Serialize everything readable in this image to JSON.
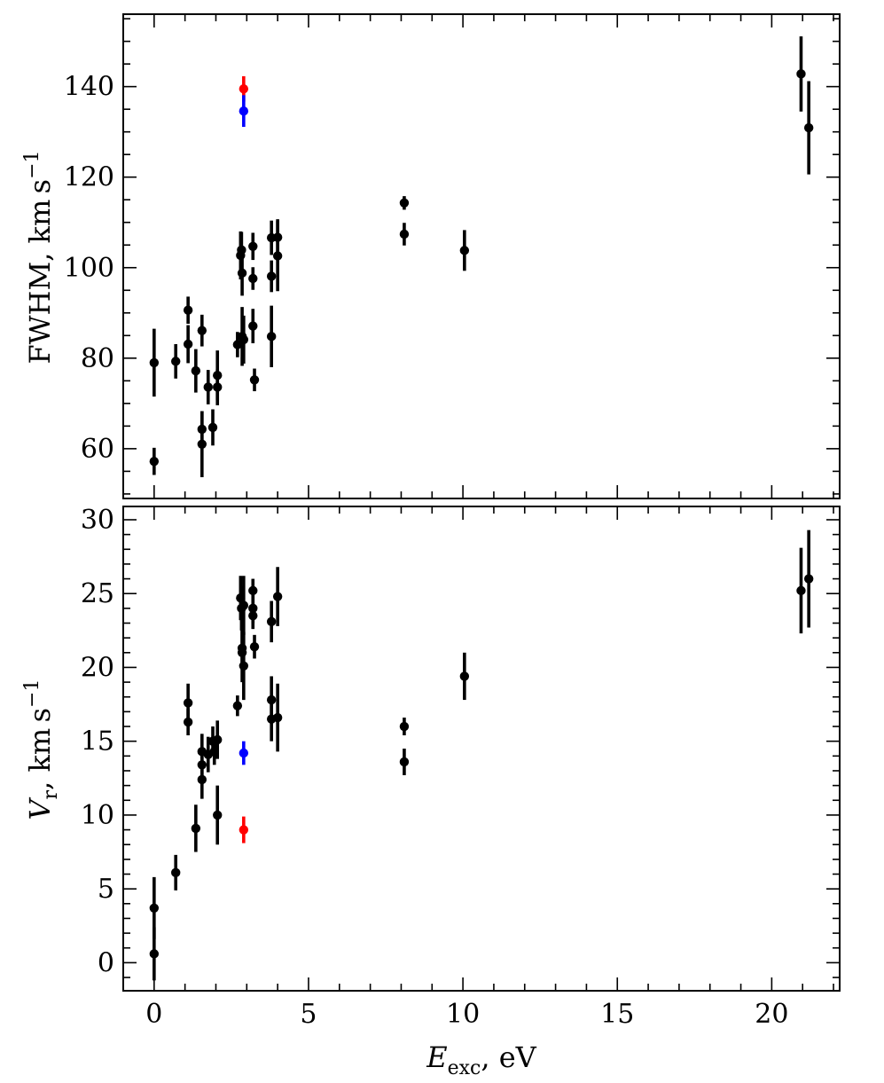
{
  "chart_data": [
    {
      "type": "scatter",
      "panel": "top",
      "xlabel": "",
      "ylabel": "FWHM, km s⁻¹",
      "ylabel_parts": {
        "main": "FWHM, km s",
        "sup": "−1"
      },
      "xlim": [
        -1,
        22.2
      ],
      "ylim": [
        49,
        156
      ],
      "yticks": [
        60,
        80,
        100,
        120,
        140
      ],
      "xticks": [
        0,
        5,
        10,
        15,
        20
      ],
      "grid": false,
      "legend": "none",
      "series": [
        {
          "color": "#000000",
          "points": [
            {
              "x": 0.0,
              "y": 79.0,
              "err": 7.5
            },
            {
              "x": 0.0,
              "y": 57.2,
              "err": 3.0
            },
            {
              "x": 0.7,
              "y": 79.3,
              "err": 3.8
            },
            {
              "x": 1.1,
              "y": 90.6,
              "err": 3.0
            },
            {
              "x": 1.1,
              "y": 83.1,
              "err": 4.2
            },
            {
              "x": 1.35,
              "y": 77.2,
              "err": 4.8
            },
            {
              "x": 1.55,
              "y": 86.1,
              "err": 3.5
            },
            {
              "x": 1.55,
              "y": 64.3,
              "err": 4.0
            },
            {
              "x": 1.55,
              "y": 61.0,
              "err": 7.3
            },
            {
              "x": 1.75,
              "y": 73.6,
              "err": 3.8
            },
            {
              "x": 1.9,
              "y": 64.7,
              "err": 4.0
            },
            {
              "x": 2.05,
              "y": 76.2,
              "err": 5.5
            },
            {
              "x": 2.05,
              "y": 73.6,
              "err": 4.0
            },
            {
              "x": 2.7,
              "y": 83.0,
              "err": 2.8
            },
            {
              "x": 2.8,
              "y": 102.7,
              "err": 5.3
            },
            {
              "x": 2.83,
              "y": 103.9,
              "err": 4.0
            },
            {
              "x": 2.85,
              "y": 98.8,
              "err": 5.0
            },
            {
              "x": 2.85,
              "y": 84.8,
              "err": 6.5
            },
            {
              "x": 2.9,
              "y": 84.1,
              "err": 5.3
            },
            {
              "x": 3.2,
              "y": 104.7,
              "err": 3.0
            },
            {
              "x": 3.2,
              "y": 97.6,
              "err": 2.5
            },
            {
              "x": 3.2,
              "y": 87.1,
              "err": 3.8
            },
            {
              "x": 3.25,
              "y": 75.2,
              "err": 2.5
            },
            {
              "x": 3.8,
              "y": 106.6,
              "err": 3.8
            },
            {
              "x": 3.8,
              "y": 98.1,
              "err": 3.5
            },
            {
              "x": 3.8,
              "y": 84.8,
              "err": 6.8
            },
            {
              "x": 4.0,
              "y": 106.7,
              "err": 4.0
            },
            {
              "x": 4.0,
              "y": 102.6,
              "err": 7.8
            },
            {
              "x": 8.1,
              "y": 114.3,
              "err": 1.5
            },
            {
              "x": 8.1,
              "y": 107.4,
              "err": 2.5
            },
            {
              "x": 10.05,
              "y": 103.8,
              "err": 4.5
            },
            {
              "x": 20.95,
              "y": 142.8,
              "err": 8.3
            },
            {
              "x": 21.2,
              "y": 130.9,
              "err": 10.3
            }
          ]
        },
        {
          "color": "#ff0000",
          "points": [
            {
              "x": 2.9,
              "y": 139.5,
              "err": 2.8
            }
          ]
        },
        {
          "color": "#0000ff",
          "points": [
            {
              "x": 2.9,
              "y": 134.6,
              "err": 3.5
            }
          ]
        }
      ]
    },
    {
      "type": "scatter",
      "panel": "bottom",
      "xlabel": "E_exc, eV",
      "xlabel_parts": {
        "main": "E",
        "sub": "exc",
        "rest": ", eV"
      },
      "ylabel": "V_r, km s⁻¹",
      "ylabel_parts": {
        "main": "V",
        "sub": "r",
        "rest": ", km s",
        "sup": "−1"
      },
      "xlim": [
        -1,
        22.2
      ],
      "ylim": [
        -1.9,
        30.9
      ],
      "yticks": [
        0,
        5,
        10,
        15,
        20,
        25,
        30
      ],
      "xticks": [
        0,
        5,
        10,
        15,
        20
      ],
      "grid": false,
      "legend": "none",
      "series": [
        {
          "color": "#000000",
          "points": [
            {
              "x": 0.0,
              "y": 3.7,
              "err": 2.1
            },
            {
              "x": 0.0,
              "y": 0.6,
              "err": 1.8
            },
            {
              "x": 0.7,
              "y": 6.1,
              "err": 1.2
            },
            {
              "x": 1.1,
              "y": 17.6,
              "err": 1.3
            },
            {
              "x": 1.1,
              "y": 16.3,
              "err": 0.9
            },
            {
              "x": 1.35,
              "y": 9.1,
              "err": 1.6
            },
            {
              "x": 1.55,
              "y": 14.3,
              "err": 1.2
            },
            {
              "x": 1.55,
              "y": 13.4,
              "err": 1.2
            },
            {
              "x": 1.55,
              "y": 12.4,
              "err": 1.3
            },
            {
              "x": 1.75,
              "y": 14.1,
              "err": 1.2
            },
            {
              "x": 1.9,
              "y": 15.0,
              "err": 1.0
            },
            {
              "x": 1.95,
              "y": 14.3,
              "err": 0.9
            },
            {
              "x": 2.05,
              "y": 15.1,
              "err": 1.3
            },
            {
              "x": 2.05,
              "y": 10.0,
              "err": 2.0
            },
            {
              "x": 2.7,
              "y": 17.4,
              "err": 0.7
            },
            {
              "x": 2.8,
              "y": 24.7,
              "err": 1.5
            },
            {
              "x": 2.83,
              "y": 24.0,
              "err": 1.5
            },
            {
              "x": 2.85,
              "y": 21.3,
              "err": 1.4
            },
            {
              "x": 2.85,
              "y": 21.0,
              "err": 2.0
            },
            {
              "x": 2.9,
              "y": 24.2,
              "err": 2.0
            },
            {
              "x": 2.9,
              "y": 20.1,
              "err": 2.3
            },
            {
              "x": 3.2,
              "y": 25.2,
              "err": 0.8
            },
            {
              "x": 3.2,
              "y": 24.0,
              "err": 1.0
            },
            {
              "x": 3.2,
              "y": 23.5,
              "err": 0.9
            },
            {
              "x": 3.25,
              "y": 21.4,
              "err": 0.8
            },
            {
              "x": 3.8,
              "y": 23.1,
              "err": 1.4
            },
            {
              "x": 3.8,
              "y": 17.8,
              "err": 1.6
            },
            {
              "x": 3.8,
              "y": 16.5,
              "err": 1.5
            },
            {
              "x": 4.0,
              "y": 24.8,
              "err": 2.0
            },
            {
              "x": 4.0,
              "y": 16.6,
              "err": 2.3
            },
            {
              "x": 8.1,
              "y": 16.0,
              "err": 0.6
            },
            {
              "x": 8.1,
              "y": 13.6,
              "err": 0.9
            },
            {
              "x": 10.05,
              "y": 19.4,
              "err": 1.6
            },
            {
              "x": 20.95,
              "y": 25.2,
              "err": 2.9
            },
            {
              "x": 21.2,
              "y": 26.0,
              "err": 3.3
            }
          ]
        },
        {
          "color": "#0000ff",
          "points": [
            {
              "x": 2.9,
              "y": 14.2,
              "err": 0.8
            }
          ]
        },
        {
          "color": "#ff0000",
          "points": [
            {
              "x": 2.9,
              "y": 9.0,
              "err": 0.9
            }
          ]
        }
      ]
    }
  ]
}
